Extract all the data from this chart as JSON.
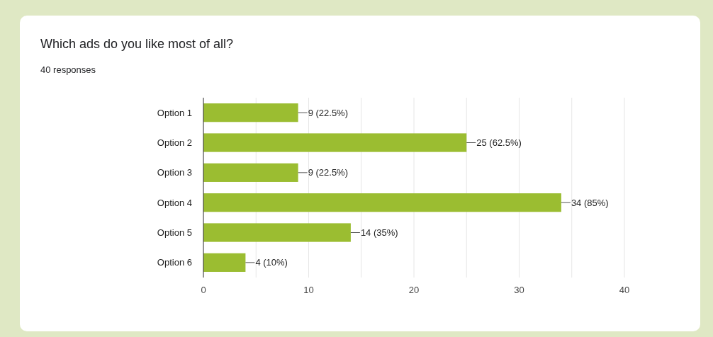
{
  "chart_data": {
    "type": "bar",
    "orientation": "horizontal",
    "title": "Which ads do you like most of all?",
    "subtitle": "40 responses",
    "categories": [
      "Option 1",
      "Option 2",
      "Option 3",
      "Option 4",
      "Option 5",
      "Option 6"
    ],
    "values": [
      9,
      25,
      9,
      34,
      14,
      4
    ],
    "color": "#9bbd31",
    "value_labels": [
      "9 (22.5%)",
      "25 (62.5%)",
      "9 (22.5%)",
      "34 (85%)",
      "14 (35%)",
      "4 (10%)"
    ],
    "xlim": [
      0,
      40
    ],
    "xticks": [
      0,
      {
        "value": 5,
        "label": null
      },
      10,
      {
        "value": 15,
        "label": null
      },
      20,
      {
        "value": 25,
        "label": null
      },
      30,
      {
        "value": 35,
        "label": null
      },
      40
    ],
    "grid": "x"
  }
}
